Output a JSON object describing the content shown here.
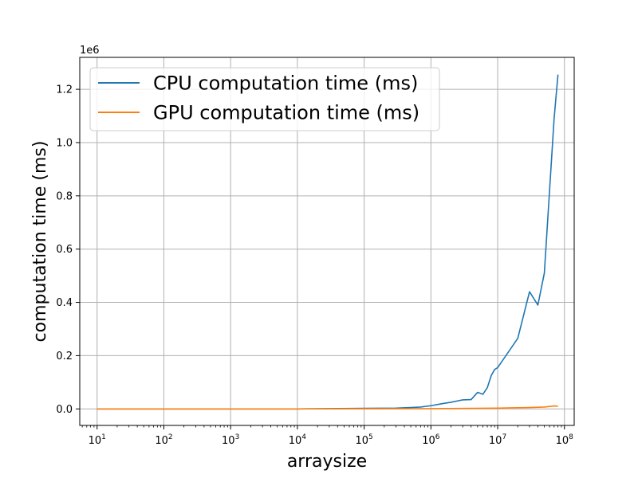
{
  "chart_data": {
    "type": "line",
    "title": "",
    "xlabel": "arraysize",
    "ylabel": "computation time (ms)",
    "x_scale": "log",
    "y_offset_label": "1e6",
    "xlim": [
      5.5,
      140000000
    ],
    "ylim": [
      -62000,
      1320000
    ],
    "x_ticks": [
      {
        "value": 10,
        "base": "10",
        "exp": "1"
      },
      {
        "value": 100,
        "base": "10",
        "exp": "2"
      },
      {
        "value": 1000,
        "base": "10",
        "exp": "3"
      },
      {
        "value": 10000,
        "base": "10",
        "exp": "4"
      },
      {
        "value": 100000,
        "base": "10",
        "exp": "5"
      },
      {
        "value": 1000000,
        "base": "10",
        "exp": "6"
      },
      {
        "value": 10000000,
        "base": "10",
        "exp": "7"
      },
      {
        "value": 100000000,
        "base": "10",
        "exp": "8"
      }
    ],
    "y_ticks": [
      {
        "value": 0,
        "label": "0.0"
      },
      {
        "value": 200000,
        "label": "0.2"
      },
      {
        "value": 400000,
        "label": "0.4"
      },
      {
        "value": 600000,
        "label": "0.6"
      },
      {
        "value": 800000,
        "label": "0.8"
      },
      {
        "value": 1000000,
        "label": "1.0"
      },
      {
        "value": 1200000,
        "label": "1.2"
      }
    ],
    "grid": true,
    "legend_position": "top-left",
    "series": [
      {
        "name": "CPU computation time (ms)",
        "color": "#1f77b4",
        "x": [
          10,
          100,
          1000,
          10000,
          100000,
          300000,
          500000,
          700000,
          1000000,
          1500000,
          2000000,
          2500000,
          3000000,
          4000000,
          5000000,
          6000000,
          7000000,
          8000000,
          9000000,
          10000000,
          20000000,
          30000000,
          40000000,
          50000000,
          70000000,
          80000000
        ],
        "y": [
          0,
          0,
          0,
          0,
          2000,
          3000,
          5000,
          7000,
          12000,
          20000,
          25000,
          30000,
          34000,
          35000,
          62000,
          55000,
          80000,
          125000,
          148000,
          155000,
          265000,
          440000,
          390000,
          510000,
          1090000,
          1255000
        ]
      },
      {
        "name": "GPU computation time (ms)",
        "color": "#ff7f0e",
        "x": [
          10,
          100,
          1000,
          10000,
          100000,
          1000000,
          10000000,
          30000000,
          50000000,
          70000000,
          80000000
        ],
        "y": [
          0,
          0,
          0,
          0,
          500,
          1000,
          3000,
          5000,
          7000,
          11000,
          10000
        ]
      }
    ]
  }
}
